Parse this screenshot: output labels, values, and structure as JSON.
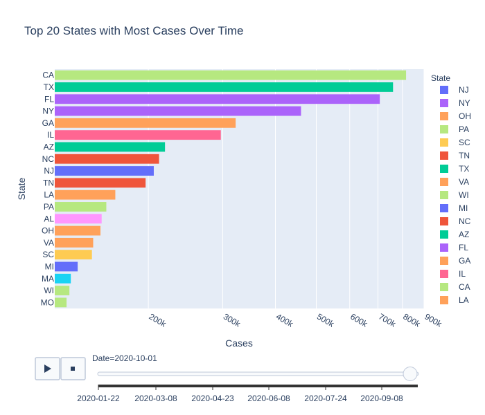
{
  "chart_data": {
    "type": "bar",
    "orientation": "horizontal",
    "title": "Top 20 States with Most Cases Over Time",
    "xlabel": "Cases",
    "ylabel": "State",
    "x_scale": "log",
    "xlim": [
      120000,
      900000
    ],
    "x_ticks": [
      {
        "value": 200000,
        "label": "200k"
      },
      {
        "value": 300000,
        "label": "300k"
      },
      {
        "value": 400000,
        "label": "400k"
      },
      {
        "value": 500000,
        "label": "500k"
      },
      {
        "value": 600000,
        "label": "600k"
      },
      {
        "value": 700000,
        "label": "700k"
      },
      {
        "value": 800000,
        "label": "800k"
      },
      {
        "value": 900000,
        "label": "900k"
      }
    ],
    "bars": [
      {
        "state": "CA",
        "value": 816000,
        "color": "#b6e880"
      },
      {
        "state": "TX",
        "value": 760000,
        "color": "#00cc96"
      },
      {
        "state": "FL",
        "value": 707000,
        "color": "#ab63fa"
      },
      {
        "state": "NY",
        "value": 460000,
        "color": "#ab63fa"
      },
      {
        "state": "GA",
        "value": 322000,
        "color": "#ffa15a"
      },
      {
        "state": "IL",
        "value": 297000,
        "color": "#ff6692"
      },
      {
        "state": "AZ",
        "value": 219000,
        "color": "#00cc96"
      },
      {
        "state": "NC",
        "value": 212000,
        "color": "#ef553b"
      },
      {
        "state": "NJ",
        "value": 206000,
        "color": "#636efa"
      },
      {
        "state": "TN",
        "value": 197000,
        "color": "#ef553b"
      },
      {
        "state": "LA",
        "value": 167000,
        "color": "#ffa15a"
      },
      {
        "state": "PA",
        "value": 159000,
        "color": "#b6e880"
      },
      {
        "state": "AL",
        "value": 155000,
        "color": "#ff97ff"
      },
      {
        "state": "OH",
        "value": 154000,
        "color": "#ffa15a"
      },
      {
        "state": "VA",
        "value": 148000,
        "color": "#ffa15a"
      },
      {
        "state": "SC",
        "value": 147000,
        "color": "#fecb52"
      },
      {
        "state": "MI",
        "value": 136000,
        "color": "#636efa"
      },
      {
        "state": "MA",
        "value": 131000,
        "color": "#19d3f3"
      },
      {
        "state": "WI",
        "value": 130000,
        "color": "#b6e880"
      },
      {
        "state": "MO",
        "value": 128000,
        "color": "#b6e880"
      }
    ],
    "legend": {
      "title": "State",
      "placement": "right",
      "items": [
        {
          "label": "NJ",
          "color": "#636efa"
        },
        {
          "label": "NY",
          "color": "#ab63fa"
        },
        {
          "label": "OH",
          "color": "#ffa15a"
        },
        {
          "label": "PA",
          "color": "#b6e880"
        },
        {
          "label": "SC",
          "color": "#fecb52"
        },
        {
          "label": "TN",
          "color": "#ef553b"
        },
        {
          "label": "TX",
          "color": "#00cc96"
        },
        {
          "label": "VA",
          "color": "#ffa15a"
        },
        {
          "label": "WI",
          "color": "#b6e880"
        },
        {
          "label": "MI",
          "color": "#636efa"
        },
        {
          "label": "NC",
          "color": "#ef553b"
        },
        {
          "label": "AZ",
          "color": "#00cc96"
        },
        {
          "label": "FL",
          "color": "#ab63fa"
        },
        {
          "label": "GA",
          "color": "#ffa15a"
        },
        {
          "label": "IL",
          "color": "#ff6692"
        },
        {
          "label": "CA",
          "color": "#b6e880"
        },
        {
          "label": "LA",
          "color": "#ffa15a"
        }
      ]
    },
    "grid": true,
    "plot_background": "#e5ecf6"
  },
  "animation": {
    "current_label": "Date=2020-10-01",
    "slider_fraction": 1.0,
    "slider_ticks": [
      "2020-01-22",
      "2020-03-08",
      "2020-04-23",
      "2020-06-08",
      "2020-07-24",
      "2020-09-08"
    ]
  },
  "controls": {
    "play_icon": "play-icon",
    "stop_icon": "stop-icon"
  }
}
